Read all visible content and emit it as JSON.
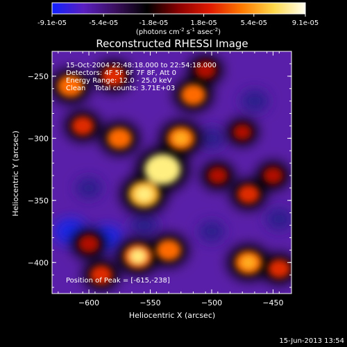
{
  "colorbar": {
    "tick_labels": [
      "-9.1e-05",
      "-5.4e-05",
      "-1.8e-05",
      "1.8e-05",
      "5.4e-05",
      "9.1e-05"
    ],
    "tick_values": [
      -9.1e-05,
      -5.4e-05,
      -1.8e-05,
      1.8e-05,
      5.4e-05,
      9.1e-05
    ],
    "range": [
      -9.1e-05,
      9.1e-05
    ],
    "units_main": "(photons cm",
    "units_exp1": "-2",
    "units_mid": " s",
    "units_exp2": "-1",
    "units_tail": " asec",
    "units_exp3": "-2",
    "units_close": ")",
    "colors": [
      "#1020ff",
      "#5a1fc0",
      "#3a0f5e",
      "#000000",
      "#8b0000",
      "#e01a00",
      "#ff7a00",
      "#ffd84a",
      "#fffff0"
    ]
  },
  "chart_data": {
    "type": "heatmap",
    "title": "Reconstructed RHESSI Image",
    "xlabel": "Heliocentric X (arcsec)",
    "ylabel": "Heliocentric Y (arcsec)",
    "xlim": [
      -630,
      -435
    ],
    "ylim": [
      -425,
      -230
    ],
    "xticks": [
      -600,
      -550,
      -500,
      -450
    ],
    "yticks": [
      -250,
      -300,
      -350,
      -400
    ],
    "xtick_labels": [
      "−600",
      "−550",
      "−500",
      "−450"
    ],
    "ytick_labels": [
      "−250",
      "−300",
      "−350",
      "−400"
    ],
    "info_lines": [
      "15-Oct-2004 22:48:18.000 to 22:54:18.000",
      "Detectors: 4F 5F 6F 7F 8F, Att 0",
      "Energy Range: 12.0 - 25.0 keV",
      "Clean    Total counts: 3.71E+03"
    ],
    "peak_label": "Position of Peak = [-615,-238]",
    "peak_position": [
      -615,
      -238
    ],
    "emission_blobs": [
      {
        "x": -540,
        "y": -325,
        "level": 1.0
      },
      {
        "x": -555,
        "y": -345,
        "level": 0.8
      },
      {
        "x": -525,
        "y": -300,
        "level": 0.65
      },
      {
        "x": -575,
        "y": -300,
        "level": 0.55
      },
      {
        "x": -605,
        "y": -290,
        "level": 0.45
      },
      {
        "x": -615,
        "y": -258,
        "level": 0.6
      },
      {
        "x": -580,
        "y": -250,
        "level": 0.5
      },
      {
        "x": -515,
        "y": -265,
        "level": 0.55
      },
      {
        "x": -505,
        "y": -245,
        "level": 0.4
      },
      {
        "x": -495,
        "y": -330,
        "level": 0.35
      },
      {
        "x": -470,
        "y": -345,
        "level": 0.45
      },
      {
        "x": -450,
        "y": -330,
        "level": 0.35
      },
      {
        "x": -475,
        "y": -295,
        "level": 0.3
      },
      {
        "x": -560,
        "y": -395,
        "level": 0.7
      },
      {
        "x": -535,
        "y": -390,
        "level": 0.55
      },
      {
        "x": -470,
        "y": -400,
        "level": 0.65
      },
      {
        "x": -445,
        "y": -405,
        "level": 0.45
      },
      {
        "x": -600,
        "y": -385,
        "level": 0.4
      },
      {
        "x": -590,
        "y": -410,
        "level": 0.45
      }
    ],
    "negative_blobs": [
      {
        "x": -615,
        "y": -375,
        "level": 0.7
      },
      {
        "x": -585,
        "y": -380,
        "level": 0.55
      },
      {
        "x": -555,
        "y": -370,
        "level": 0.45
      },
      {
        "x": -500,
        "y": -300,
        "level": 0.4
      },
      {
        "x": -465,
        "y": -270,
        "level": 0.45
      },
      {
        "x": -445,
        "y": -365,
        "level": 0.4
      },
      {
        "x": -500,
        "y": -375,
        "level": 0.35
      },
      {
        "x": -600,
        "y": -340,
        "level": 0.35
      }
    ]
  },
  "footer": {
    "date": "15-Jun-2013 13:54"
  }
}
